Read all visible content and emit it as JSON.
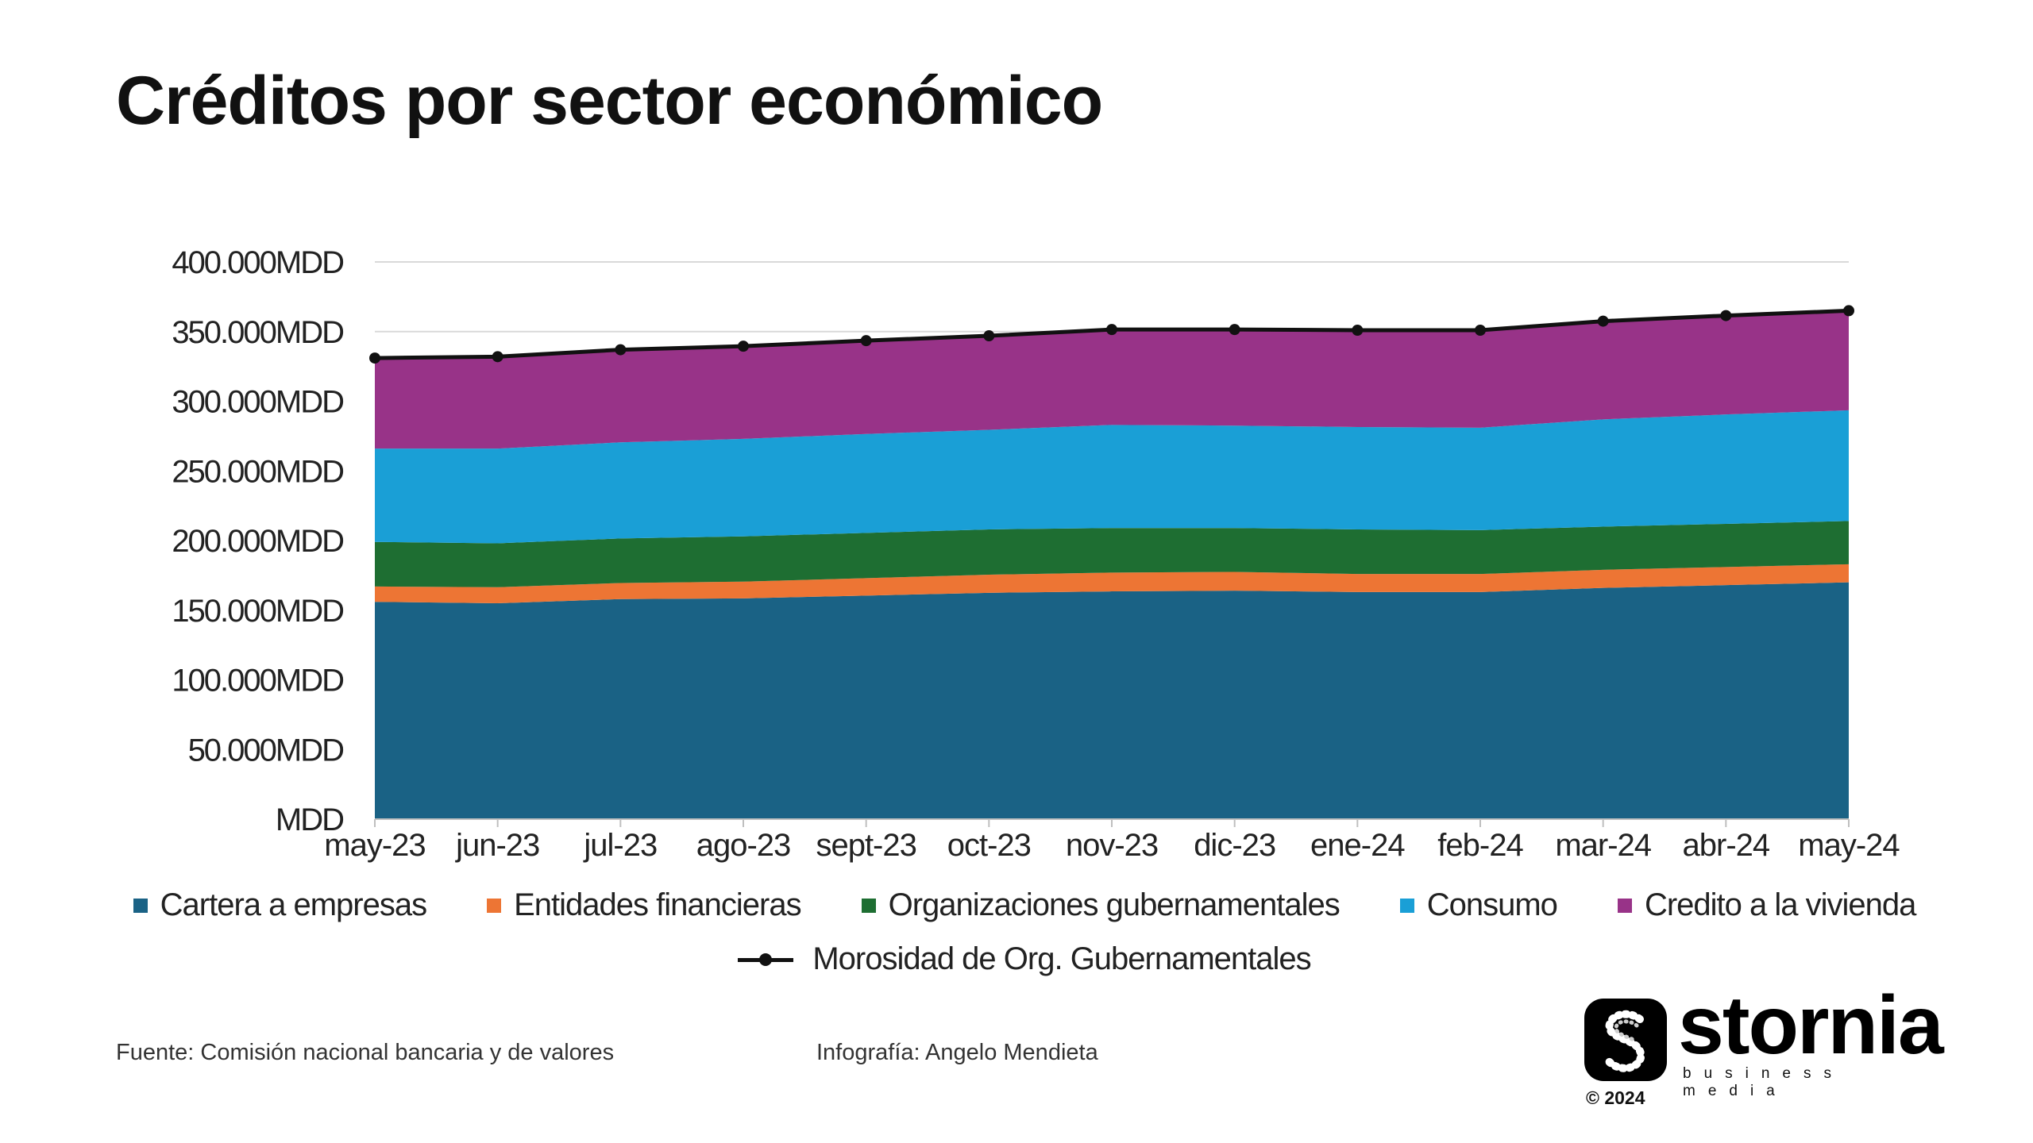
{
  "title": "Créditos por sector económico",
  "chart_data": {
    "type": "area",
    "stacked": true,
    "categories": [
      "may-23",
      "jun-23",
      "jul-23",
      "ago-23",
      "sept-23",
      "oct-23",
      "nov-23",
      "dic-23",
      "ene-24",
      "feb-24",
      "mar-24",
      "abr-24",
      "may-24"
    ],
    "ylim": [
      0,
      400000
    ],
    "yticks": [
      {
        "value": 0,
        "label": "MDD"
      },
      {
        "value": 50000,
        "label": "50.000MDD"
      },
      {
        "value": 100000,
        "label": "100.000MDD"
      },
      {
        "value": 150000,
        "label": "150.000MDD"
      },
      {
        "value": 200000,
        "label": "200.000MDD"
      },
      {
        "value": 250000,
        "label": "250.000MDD"
      },
      {
        "value": 300000,
        "label": "300.000MDD"
      },
      {
        "value": 350000,
        "label": "350.000MDD"
      },
      {
        "value": 400000,
        "label": "400.000MDD"
      }
    ],
    "grid": true,
    "legend_position": "bottom",
    "series": [
      {
        "name": "Cartera a empresas",
        "color": "#1a6285",
        "values": [
          156000,
          155000,
          158000,
          158500,
          160500,
          162500,
          163500,
          164000,
          163000,
          163000,
          166000,
          168000,
          170000
        ]
      },
      {
        "name": "Entidades financieras",
        "color": "#ed7534",
        "values": [
          11000,
          11500,
          11500,
          12000,
          12500,
          13000,
          13500,
          13500,
          13000,
          13000,
          13000,
          13000,
          13000
        ]
      },
      {
        "name": "Organizaciones gubernamentales",
        "color": "#1e6e32",
        "values": [
          32000,
          31500,
          32000,
          32500,
          32500,
          32500,
          32000,
          31500,
          32000,
          31500,
          31000,
          31000,
          31000
        ]
      },
      {
        "name": "Consumo",
        "color": "#1a9fd6",
        "values": [
          67000,
          68000,
          69000,
          70000,
          71000,
          71500,
          74000,
          73500,
          73500,
          73500,
          77000,
          78500,
          79500
        ]
      },
      {
        "name": "Credito a la vivienda",
        "color": "#983388",
        "values": [
          65000,
          65000,
          66000,
          66500,
          67000,
          67500,
          68500,
          69500,
          70000,
          70000,
          70500,
          71000,
          71500
        ]
      }
    ],
    "line_series": {
      "name": "Morosidad de Org. Gubernamentales",
      "color": "#111111",
      "values": [
        331000,
        332000,
        337000,
        339500,
        343500,
        347000,
        351500,
        351500,
        351000,
        351000,
        357500,
        361500,
        365000
      ]
    }
  },
  "footer": {
    "source": "Fuente: Comisión nacional bancaria y de valores",
    "credit": "Infografía: Angelo Mendieta"
  },
  "logo": {
    "name": "stornia",
    "subtitle": "business media",
    "copyright": "© 2024"
  }
}
